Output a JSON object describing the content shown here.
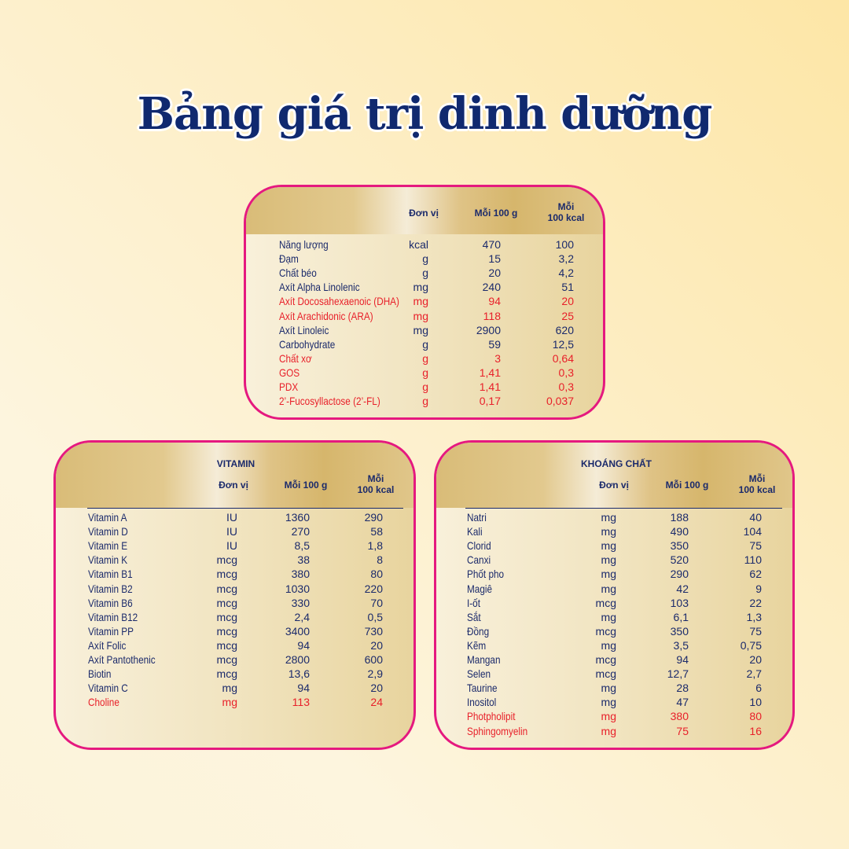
{
  "title": "Bảng giá trị dinh dưỡng",
  "colors": {
    "border": "#e5197f",
    "text": "#1b2a6b",
    "highlight": "#e8202a"
  },
  "headers": {
    "unit": "Đơn vị",
    "per100g": "Mỗi 100 g",
    "per100kcal_1": "Mỗi",
    "per100kcal_2": "100 kcal"
  },
  "main": {
    "rows": [
      {
        "name": "Năng lượng",
        "unit": "kcal",
        "per100g": "470",
        "per100kcal": "100"
      },
      {
        "name": "Đạm",
        "unit": "g",
        "per100g": "15",
        "per100kcal": "3,2"
      },
      {
        "name": "Chất béo",
        "unit": "g",
        "per100g": "20",
        "per100kcal": "4,2"
      },
      {
        "name": "Axít Alpha Linolenic",
        "unit": "mg",
        "per100g": "240",
        "per100kcal": "51"
      },
      {
        "name": "Axít Docosahexaenoic (DHA)",
        "unit": "mg",
        "per100g": "94",
        "per100kcal": "20",
        "highlight": true
      },
      {
        "name": "Axít Arachidonic (ARA)",
        "unit": "mg",
        "per100g": "118",
        "per100kcal": "25",
        "highlight": true
      },
      {
        "name": "Axít Linoleic",
        "unit": "mg",
        "per100g": "2900",
        "per100kcal": "620"
      },
      {
        "name": "Carbohydrate",
        "unit": "g",
        "per100g": "59",
        "per100kcal": "12,5"
      },
      {
        "name": "Chất xơ",
        "unit": "g",
        "per100g": "3",
        "per100kcal": "0,64",
        "highlight": true
      },
      {
        "name": "GOS",
        "unit": "g",
        "per100g": "1,41",
        "per100kcal": "0,3",
        "highlight": true
      },
      {
        "name": "PDX",
        "unit": "g",
        "per100g": "1,41",
        "per100kcal": "0,3",
        "highlight": true
      },
      {
        "name": "2’-Fucosyllactose (2’-FL)",
        "unit": "g",
        "per100g": "0,17",
        "per100kcal": "0,037",
        "highlight": true
      }
    ]
  },
  "vitamin": {
    "title": "VITAMIN",
    "rows": [
      {
        "name": "Vitamin A",
        "unit": "IU",
        "per100g": "1360",
        "per100kcal": "290"
      },
      {
        "name": "Vitamin D",
        "unit": "IU",
        "per100g": "270",
        "per100kcal": "58"
      },
      {
        "name": "Vitamin E",
        "unit": "IU",
        "per100g": "8,5",
        "per100kcal": "1,8"
      },
      {
        "name": "Vitamin K",
        "unit": "mcg",
        "per100g": "38",
        "per100kcal": "8"
      },
      {
        "name": "Vitamin B1",
        "unit": "mcg",
        "per100g": "380",
        "per100kcal": "80"
      },
      {
        "name": "Vitamin B2",
        "unit": "mcg",
        "per100g": "1030",
        "per100kcal": "220"
      },
      {
        "name": "Vitamin B6",
        "unit": "mcg",
        "per100g": "330",
        "per100kcal": "70"
      },
      {
        "name": "Vitamin B12",
        "unit": "mcg",
        "per100g": "2,4",
        "per100kcal": "0,5"
      },
      {
        "name": "Vitamin PP",
        "unit": "mcg",
        "per100g": "3400",
        "per100kcal": "730"
      },
      {
        "name": "Axít Folic",
        "unit": "mcg",
        "per100g": "94",
        "per100kcal": "20"
      },
      {
        "name": "Axít Pantothenic",
        "unit": "mcg",
        "per100g": "2800",
        "per100kcal": "600"
      },
      {
        "name": "Biotin",
        "unit": "mcg",
        "per100g": "13,6",
        "per100kcal": "2,9"
      },
      {
        "name": "Vitamin C",
        "unit": "mg",
        "per100g": "94",
        "per100kcal": "20"
      },
      {
        "name": "Choline",
        "unit": "mg",
        "per100g": "113",
        "per100kcal": "24",
        "highlight": true
      }
    ]
  },
  "minerals": {
    "title": "KHOÁNG CHẤT",
    "rows": [
      {
        "name": "Natri",
        "unit": "mg",
        "per100g": "188",
        "per100kcal": "40"
      },
      {
        "name": "Kali",
        "unit": "mg",
        "per100g": "490",
        "per100kcal": "104"
      },
      {
        "name": "Clorid",
        "unit": "mg",
        "per100g": "350",
        "per100kcal": "75"
      },
      {
        "name": "Canxi",
        "unit": "mg",
        "per100g": "520",
        "per100kcal": "110"
      },
      {
        "name": "Phốt pho",
        "unit": "mg",
        "per100g": "290",
        "per100kcal": "62"
      },
      {
        "name": "Magiê",
        "unit": "mg",
        "per100g": "42",
        "per100kcal": "9"
      },
      {
        "name": "I-ốt",
        "unit": "mcg",
        "per100g": "103",
        "per100kcal": "22"
      },
      {
        "name": "Sắt",
        "unit": "mg",
        "per100g": "6,1",
        "per100kcal": "1,3"
      },
      {
        "name": "Đồng",
        "unit": "mcg",
        "per100g": "350",
        "per100kcal": "75"
      },
      {
        "name": "Kẽm",
        "unit": "mg",
        "per100g": "3,5",
        "per100kcal": "0,75"
      },
      {
        "name": "Mangan",
        "unit": "mcg",
        "per100g": "94",
        "per100kcal": "20"
      },
      {
        "name": "Selen",
        "unit": "mcg",
        "per100g": "12,7",
        "per100kcal": "2,7"
      },
      {
        "name": "Taurine",
        "unit": "mg",
        "per100g": "28",
        "per100kcal": "6"
      },
      {
        "name": "Inositol",
        "unit": "mg",
        "per100g": "47",
        "per100kcal": "10"
      },
      {
        "name": "Photpholipit",
        "unit": "mg",
        "per100g": "380",
        "per100kcal": "80",
        "highlight": true
      },
      {
        "name": "Sphingomyelin",
        "unit": "mg",
        "per100g": "75",
        "per100kcal": "16",
        "highlight": true
      }
    ]
  }
}
